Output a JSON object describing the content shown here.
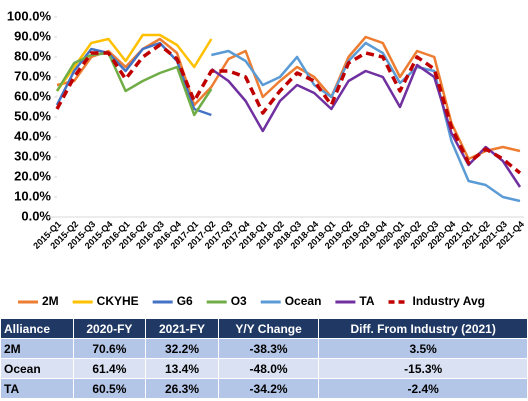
{
  "chart_data": {
    "type": "line",
    "categories": [
      "2015-Q1",
      "2015-Q2",
      "2015-Q3",
      "2015-Q4",
      "2016-Q1",
      "2016-Q2",
      "2016-Q3",
      "2016-Q4",
      "2017-Q1",
      "2017-Q2",
      "2017-Q3",
      "2017-Q4",
      "2018-Q1",
      "2018-Q2",
      "2018-Q3",
      "2018-Q4",
      "2019-Q1",
      "2019-Q2",
      "2019-Q3",
      "2019-Q4",
      "2020-Q1",
      "2020-Q2",
      "2020-Q3",
      "2020-Q4",
      "2021-Q1",
      "2021-Q2",
      "2021-Q3",
      "2021-Q4"
    ],
    "ylim": [
      0,
      100
    ],
    "yticks": [
      {
        "value": 0,
        "label": "0.0%"
      },
      {
        "value": 10,
        "label": "10.0%"
      },
      {
        "value": 20,
        "label": "20.0%"
      },
      {
        "value": 30,
        "label": "30.0%"
      },
      {
        "value": 40,
        "label": "40.0%"
      },
      {
        "value": 50,
        "label": "50.0%"
      },
      {
        "value": 60,
        "label": "60.0%"
      },
      {
        "value": 70,
        "label": "70.0%"
      },
      {
        "value": 80,
        "label": "80.0%"
      },
      {
        "value": 90,
        "label": "90.0%"
      },
      {
        "value": 100,
        "label": "100.0%"
      }
    ],
    "grid": false,
    "legend": "bottom",
    "series": [
      {
        "name": "2M",
        "color": "#ed7d31",
        "values": [
          66,
          68,
          80,
          83,
          75,
          84,
          89,
          82,
          56,
          65,
          79,
          83,
          60,
          68,
          75,
          70,
          60,
          80,
          90,
          87,
          70,
          83,
          80,
          47,
          29,
          33,
          35,
          33
        ]
      },
      {
        "name": "CKYHE",
        "color": "#ffc000",
        "values": [
          63,
          75,
          87,
          89,
          78,
          91,
          91,
          86,
          75,
          89,
          null,
          null,
          null,
          null,
          null,
          null,
          null,
          null,
          null,
          null,
          null,
          null,
          null,
          null,
          null,
          null,
          null,
          null
        ]
      },
      {
        "name": "G6",
        "color": "#4472c4",
        "values": [
          56,
          73,
          84,
          82,
          73,
          84,
          87,
          78,
          54,
          51,
          null,
          null,
          null,
          null,
          null,
          null,
          null,
          null,
          null,
          null,
          null,
          null,
          null,
          null,
          null,
          null,
          null,
          null
        ]
      },
      {
        "name": "O3",
        "color": "#70ad47",
        "values": [
          63,
          77,
          81,
          82,
          63,
          68,
          72,
          75,
          51,
          64,
          null,
          null,
          null,
          null,
          null,
          null,
          null,
          null,
          null,
          null,
          null,
          null,
          null,
          null,
          null,
          null,
          null,
          null
        ]
      },
      {
        "name": "Ocean",
        "color": "#5b9bd5",
        "values": [
          null,
          null,
          null,
          null,
          null,
          null,
          null,
          null,
          null,
          81,
          83,
          78,
          66,
          70,
          80,
          66,
          60,
          78,
          87,
          82,
          67,
          75,
          73,
          38,
          18,
          16,
          10,
          8
        ]
      },
      {
        "name": "TA",
        "color": "#7030a0",
        "values": [
          null,
          null,
          null,
          null,
          null,
          null,
          null,
          null,
          null,
          74,
          68,
          58,
          43,
          58,
          66,
          62,
          54,
          68,
          73,
          70,
          55,
          76,
          70,
          42,
          26,
          35,
          28,
          15
        ]
      },
      {
        "name": "Industry Avg",
        "color": "#c00000",
        "dashed": true,
        "values": [
          54,
          70,
          82,
          82,
          69,
          80,
          86,
          79,
          58,
          73,
          73,
          70,
          52,
          63,
          72,
          68,
          56,
          77,
          82,
          80,
          63,
          80,
          74,
          45,
          27,
          34,
          29,
          22
        ]
      }
    ]
  },
  "table": {
    "header": [
      "Alliance",
      "2020-FY",
      "2021-FY",
      "Y/Y Change",
      "Diff. From Industry (2021)"
    ],
    "rows": [
      [
        "2M",
        "70.6%",
        "32.2%",
        "-38.3%",
        "3.5%"
      ],
      [
        "Ocean",
        "61.4%",
        "13.4%",
        "-48.0%",
        "-15.3%"
      ],
      [
        "TA",
        "60.5%",
        "26.3%",
        "-34.2%",
        "-2.4%"
      ]
    ]
  }
}
